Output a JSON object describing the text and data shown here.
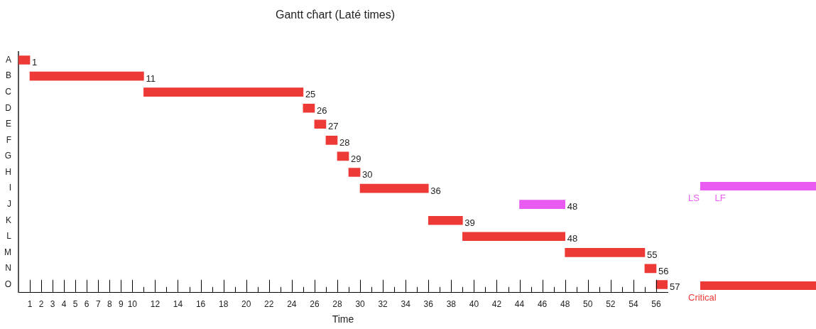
{
  "chart_data": {
    "type": "bar",
    "orientation": "horizontal",
    "title": "Gantt ch̀art (Laté times)",
    "xlabel": "Time",
    "categories": [
      "A",
      "B",
      "C",
      "D",
      "E",
      "F",
      "G",
      "H",
      "I",
      "J",
      "K",
      "L",
      "M",
      "N",
      "O"
    ],
    "series": [
      {
        "name": "Critical",
        "color": "#ee3a36",
        "base": [
          0,
          1,
          11,
          25,
          26,
          27,
          28,
          29,
          30,
          null,
          36,
          39,
          48,
          55,
          56
        ],
        "values": [
          1,
          10,
          14,
          1,
          1,
          1,
          1,
          1,
          6,
          null,
          3,
          9,
          7,
          1,
          1
        ],
        "value_labels": [
          "1",
          "11",
          "25",
          "26",
          "27",
          "28",
          "29",
          "30",
          "36",
          null,
          "39",
          "48",
          "55",
          "56",
          "57"
        ]
      },
      {
        "name": "LS LF",
        "color": "#e95bf0",
        "base": [
          null,
          null,
          null,
          null,
          null,
          null,
          null,
          null,
          null,
          44,
          null,
          null,
          null,
          null,
          null
        ],
        "values": [
          null,
          null,
          null,
          null,
          null,
          null,
          null,
          null,
          null,
          4,
          null,
          null,
          null,
          null,
          null
        ],
        "value_labels": [
          null,
          null,
          null,
          null,
          null,
          null,
          null,
          null,
          null,
          "48",
          null,
          null,
          null,
          null,
          null
        ]
      }
    ],
    "xlim": [
      0,
      57
    ],
    "xticks": [
      1,
      2,
      3,
      4,
      5,
      6,
      7,
      8,
      9,
      10,
      {
        "value": 11,
        "label": null
      },
      12,
      {
        "value": 13,
        "label": null
      },
      14,
      {
        "value": 15,
        "label": null
      },
      16,
      {
        "value": 17,
        "label": null
      },
      18,
      {
        "value": 19,
        "label": null
      },
      20,
      {
        "value": 21,
        "label": null
      },
      22,
      {
        "value": 23,
        "label": null
      },
      24,
      {
        "value": 25,
        "label": null
      },
      26,
      {
        "value": 27,
        "label": null
      },
      28,
      {
        "value": 29,
        "label": null
      },
      30,
      {
        "value": 31,
        "label": null
      },
      32,
      {
        "value": 33,
        "label": null
      },
      34,
      {
        "value": 35,
        "label": null
      },
      36,
      {
        "value": 37,
        "label": null
      },
      38,
      {
        "value": 39,
        "label": null
      },
      40,
      {
        "value": 41,
        "label": null
      },
      42,
      {
        "value": 43,
        "label": null
      },
      44,
      {
        "value": 45,
        "label": null
      },
      46,
      {
        "value": 47,
        "label": null
      },
      48,
      {
        "value": 49,
        "label": null
      },
      50,
      {
        "value": 51,
        "label": null
      },
      52,
      {
        "value": 53,
        "label": null
      },
      54,
      {
        "value": 55,
        "label": null
      },
      56
    ],
    "legend": "right"
  }
}
